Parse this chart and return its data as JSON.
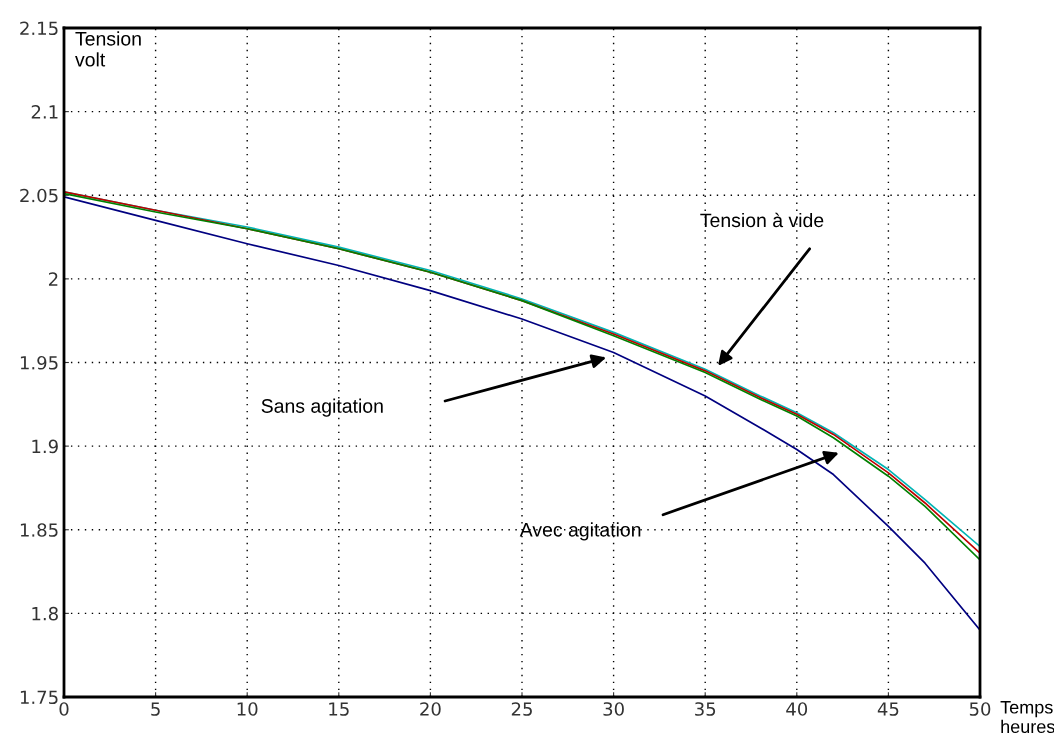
{
  "chart_data": {
    "type": "line",
    "xlabel": "Temps\nheures",
    "ylabel": "Tension\nvolt",
    "x": [
      0,
      5,
      10,
      15,
      20,
      25,
      30,
      35,
      38,
      40,
      42,
      45,
      47,
      50
    ],
    "series": [
      {
        "color": "#00b4b4",
        "values": [
          2.052,
          2.041,
          2.031,
          2.019,
          2.005,
          1.988,
          1.968,
          1.946,
          1.93,
          1.92,
          1.908,
          1.886,
          1.868,
          1.84
        ]
      },
      {
        "color": "#c00000",
        "values": [
          2.052,
          2.041,
          2.03,
          2.018,
          2.004,
          1.987,
          1.967,
          1.945,
          1.929,
          1.919,
          1.907,
          1.884,
          1.866,
          1.836
        ]
      },
      {
        "color": "#008000",
        "values": [
          2.051,
          2.04,
          2.03,
          2.018,
          2.004,
          1.987,
          1.966,
          1.944,
          1.928,
          1.918,
          1.905,
          1.882,
          1.864,
          1.832
        ]
      },
      {
        "color": "#000080",
        "values": [
          2.049,
          2.035,
          2.021,
          2.008,
          1.993,
          1.976,
          1.956,
          1.93,
          1.911,
          1.898,
          1.883,
          1.852,
          1.83,
          1.79
        ]
      }
    ],
    "xlim": [
      0,
      50
    ],
    "xticks": [
      0,
      5,
      10,
      15,
      20,
      25,
      30,
      35,
      40,
      45,
      50
    ],
    "ylim": [
      1.75,
      2.15
    ],
    "yticks": [
      1.75,
      1.8,
      1.85,
      1.9,
      1.95,
      2,
      2.05,
      2.1,
      2.15
    ],
    "grid": true,
    "marker": "none",
    "line_style": "solid",
    "annotations": [
      "Tension à vide",
      "Sans agitation",
      "Avec agitation"
    ]
  }
}
